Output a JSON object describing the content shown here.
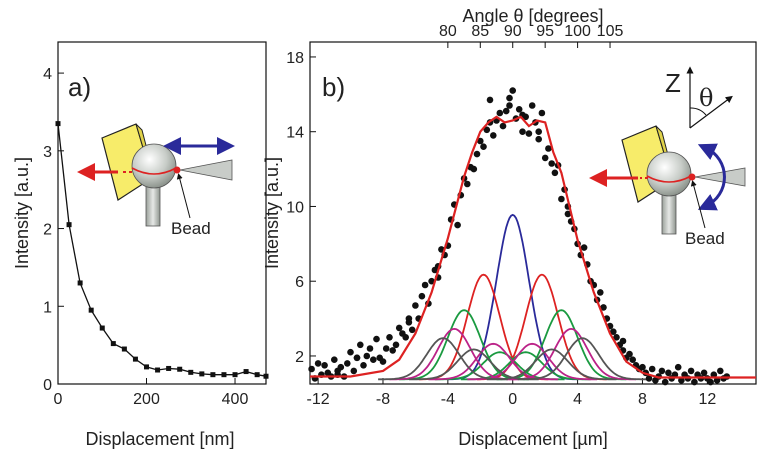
{
  "chart_data": [
    {
      "panel": "a)",
      "type": "line",
      "xlabel": "Displacement [nm]",
      "ylabel": "Intensity [a.u.]",
      "xlim": [
        0,
        470
      ],
      "ylim": [
        0,
        4.4
      ],
      "xticks": [
        0,
        200,
        400
      ],
      "yticks": [
        0,
        1,
        2,
        3,
        4
      ],
      "annotation": "Bead",
      "series": [
        {
          "marker": "square",
          "color": "#111111",
          "x": [
            0,
            25,
            50,
            75,
            100,
            125,
            150,
            175,
            200,
            225,
            250,
            275,
            300,
            325,
            350,
            375,
            400,
            425,
            450,
            470
          ],
          "y": [
            3.35,
            2.05,
            1.3,
            0.95,
            0.72,
            0.52,
            0.45,
            0.32,
            0.22,
            0.18,
            0.2,
            0.19,
            0.15,
            0.13,
            0.12,
            0.12,
            0.12,
            0.16,
            0.12,
            0.1
          ]
        }
      ]
    },
    {
      "panel": "b)",
      "type": "scatter",
      "xlabel": "Displacement [µm]",
      "ylabel": "Intensity [a.u.]",
      "x2label": "Angle θ [degrees]",
      "xlim": [
        -12.5,
        15
      ],
      "ylim": [
        0.5,
        18.8
      ],
      "xticks": [
        -12,
        -8,
        -4,
        0,
        4,
        8,
        12
      ],
      "yticks": [
        2,
        6,
        10,
        14,
        18
      ],
      "x2ticks": [
        80,
        85,
        90,
        95,
        100,
        105
      ],
      "axis_symbols": {
        "z": "Z",
        "theta": "θ"
      },
      "annotation": "Bead",
      "colors": {
        "data": "#111111",
        "fit": "#dd2222",
        "center": "#2a2a9a",
        "pair1": "#dd2222",
        "pair2": "#1a9a40",
        "pair3": "#bb2288",
        "pair4": "#555555"
      },
      "baseline": 0.75,
      "gaussian_sigma": 1.0,
      "components": [
        {
          "mu": 0,
          "amp": 8.8,
          "color": "center"
        },
        {
          "mu": -1.8,
          "amp": 5.6,
          "color": "pair1"
        },
        {
          "mu": 1.8,
          "amp": 5.6,
          "color": "pair1"
        },
        {
          "mu": -0.8,
          "amp": 1.45,
          "color": "pair2"
        },
        {
          "mu": 0.8,
          "amp": 1.45,
          "color": "pair2"
        },
        {
          "mu": -3.0,
          "amp": 3.7,
          "color": "pair2"
        },
        {
          "mu": 3.0,
          "amp": 3.7,
          "color": "pair2"
        },
        {
          "mu": -1.2,
          "amp": 1.9,
          "color": "pair3"
        },
        {
          "mu": 1.2,
          "amp": 1.9,
          "color": "pair3"
        },
        {
          "mu": -3.6,
          "amp": 2.7,
          "color": "pair3"
        },
        {
          "mu": 3.6,
          "amp": 2.7,
          "color": "pair3"
        },
        {
          "mu": -2.4,
          "amp": 1.6,
          "color": "pair4"
        },
        {
          "mu": 2.4,
          "amp": 1.6,
          "color": "pair4"
        },
        {
          "mu": -4.3,
          "amp": 2.2,
          "color": "pair4"
        },
        {
          "mu": 4.3,
          "amp": 2.2,
          "color": "pair4"
        }
      ],
      "fit": {
        "x": [
          -12.5,
          -10,
          -8,
          -7,
          -6,
          -5,
          -4,
          -3,
          -2.5,
          -2,
          -1.5,
          -1,
          -0.5,
          0,
          0.5,
          1,
          1.5,
          2,
          2.5,
          3,
          4,
          5,
          6,
          7,
          8,
          9,
          10,
          12,
          15
        ],
        "y": [
          0.9,
          0.9,
          1.2,
          1.8,
          3.2,
          5.4,
          8.3,
          11.6,
          12.9,
          14.0,
          14.5,
          14.8,
          14.5,
          14.6,
          14.8,
          14.3,
          14.6,
          14.5,
          12.9,
          11.8,
          8.2,
          5.4,
          3.2,
          1.7,
          1.1,
          0.85,
          0.85,
          0.85,
          0.85
        ]
      },
      "points": {
        "x": [
          -12.4,
          -12.2,
          -12.0,
          -11.8,
          -11.6,
          -11.4,
          -11.2,
          -11.0,
          -10.8,
          -10.6,
          -10.4,
          -10.2,
          -10.0,
          -9.8,
          -9.6,
          -9.4,
          -9.2,
          -9.0,
          -8.8,
          -8.6,
          -8.4,
          -8.2,
          -8.0,
          -7.8,
          -7.6,
          -7.4,
          -7.2,
          -7.0,
          -6.8,
          -6.6,
          -6.4,
          -6.2,
          -6.0,
          -5.8,
          -5.6,
          -5.4,
          -5.2,
          -5.0,
          -4.8,
          -4.6,
          -4.4,
          -4.2,
          -4.0,
          -3.8,
          -3.6,
          -3.4,
          -3.2,
          -3.0,
          -2.8,
          -2.6,
          -2.4,
          -2.2,
          -2.0,
          -1.8,
          -1.6,
          -1.4,
          -1.2,
          -1.0,
          -0.8,
          -0.6,
          -0.4,
          -0.2,
          0.0,
          0.2,
          0.4,
          0.6,
          0.8,
          1.0,
          1.2,
          1.4,
          1.6,
          1.8,
          2.0,
          2.2,
          2.4,
          2.6,
          2.8,
          3.0,
          3.2,
          3.4,
          3.6,
          3.8,
          4.0,
          4.2,
          4.4,
          4.6,
          4.8,
          5.0,
          5.2,
          5.4,
          5.6,
          5.8,
          6.0,
          6.2,
          6.4,
          6.6,
          6.8,
          7.0,
          7.2,
          7.4,
          7.6,
          7.8,
          8.0,
          8.2,
          8.4,
          8.6,
          8.8,
          9.0,
          9.2,
          9.4,
          9.6,
          9.8,
          10.0,
          10.2,
          10.4,
          10.6,
          10.8,
          11.0,
          11.2,
          11.4,
          11.6,
          11.8,
          12.0,
          12.2,
          12.4,
          12.6,
          12.8,
          13.0,
          13.2,
          -0.2,
          0.6,
          -1.4,
          1.6,
          -6.4,
          6.8,
          -9.6,
          -10.8,
          -4.6,
          3.4
        ],
        "y": [
          1.3,
          0.8,
          1.6,
          1.0,
          1.5,
          1.1,
          0.9,
          1.8,
          1.2,
          1.4,
          0.9,
          1.6,
          2.2,
          1.2,
          1.9,
          2.6,
          1.5,
          2.0,
          2.4,
          1.8,
          2.9,
          1.9,
          1.7,
          2.4,
          3.0,
          2.3,
          2.6,
          3.5,
          3.2,
          3.0,
          4.0,
          3.4,
          4.7,
          4.0,
          5.2,
          5.8,
          4.8,
          6.0,
          6.6,
          6.2,
          7.7,
          7.4,
          7.9,
          9.3,
          10.1,
          9.0,
          10.6,
          11.5,
          11.2,
          12.1,
          12.0,
          12.8,
          13.5,
          13.2,
          14.1,
          14.5,
          13.8,
          14.6,
          15.0,
          14.3,
          15.1,
          15.4,
          16.2,
          14.7,
          15.2,
          14.0,
          14.8,
          13.9,
          15.4,
          14.5,
          14.0,
          15.0,
          12.6,
          13.1,
          12.3,
          11.8,
          12.2,
          10.4,
          10.9,
          10.0,
          9.2,
          8.8,
          8.0,
          7.4,
          7.8,
          6.9,
          6.0,
          5.8,
          5.0,
          5.4,
          4.6,
          4.0,
          3.6,
          3.3,
          3.0,
          2.6,
          2.3,
          1.9,
          2.1,
          1.8,
          1.5,
          1.3,
          1.4,
          1.1,
          0.8,
          1.3,
          0.7,
          0.9,
          1.2,
          0.6,
          1.1,
          0.8,
          1.0,
          1.4,
          0.7,
          1.0,
          0.8,
          1.2,
          0.6,
          1.0,
          0.8,
          1.1,
          0.8,
          0.6,
          1.0,
          0.7,
          1.2,
          0.8,
          0.9,
          15.8,
          14.9,
          15.7,
          13.6,
          3.8,
          2.8,
          1.9,
          1.0,
          6.8,
          9.6
        ]
      }
    }
  ]
}
